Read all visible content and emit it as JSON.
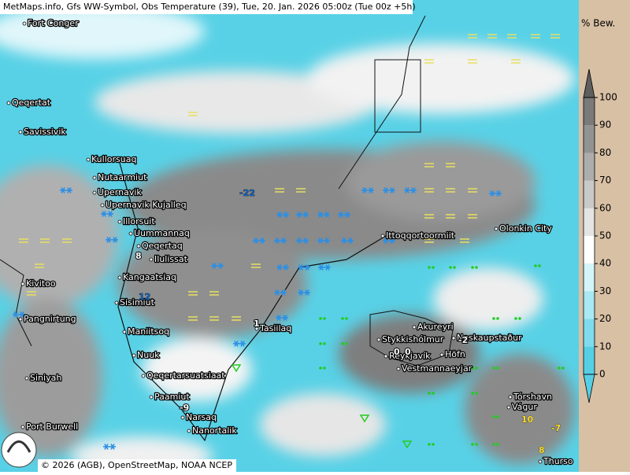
{
  "header": {
    "title": "MetMaps.info, Gfs WW-Symbol, Obs Temperature (39), Tue, 20. Jan. 2026 05:00z (Tue 00z +5h)"
  },
  "legend": {
    "title": "% Bew.",
    "ticks": [
      0,
      10,
      20,
      30,
      40,
      50,
      60,
      70,
      80,
      90,
      100
    ],
    "colors": [
      "#56cfe4",
      "#7edcec",
      "#a8e9f3",
      "#d3f5f9",
      "#ffffff",
      "#e4e4e4",
      "#c9c9c9",
      "#adadad",
      "#939393",
      "#7a7a7a",
      "#5e5e5e"
    ]
  },
  "places": [
    "Fort Conger",
    "Qeqertat",
    "Savissivik",
    "Kullorsuaq",
    "Nutaarmiut",
    "Upernavik",
    "Upernavik Kujalleq",
    "Illorsuit",
    "Uummannaq",
    "Qeqertaq",
    "Ilulissat",
    "Kangaatsiaq",
    "Sisimiut",
    "Maniitsoq",
    "Nuuk",
    "Qeqertarsuatsiaat",
    "Paamiut",
    "Narsaq",
    "Nanortalik",
    "Kivitoo",
    "Pangnirtung",
    "Siniyah",
    "Port Burwell",
    "Tasiilaq",
    "Ittoqqortoormiit",
    "Olonkin City",
    "Akureyri",
    "Stykkishólmur",
    "Reykjavík",
    "Vestmannaeyjar",
    "Höfn",
    "Neskaupstaður",
    "Tórshavn",
    "Vágur",
    "Thurso"
  ],
  "observations": [
    -22,
    8,
    12,
    -9,
    1,
    -2,
    10,
    -7,
    8,
    0,
    0
  ],
  "footer": "© 2026 (AGB), OpenStreetMap, NOAA NCEP"
}
